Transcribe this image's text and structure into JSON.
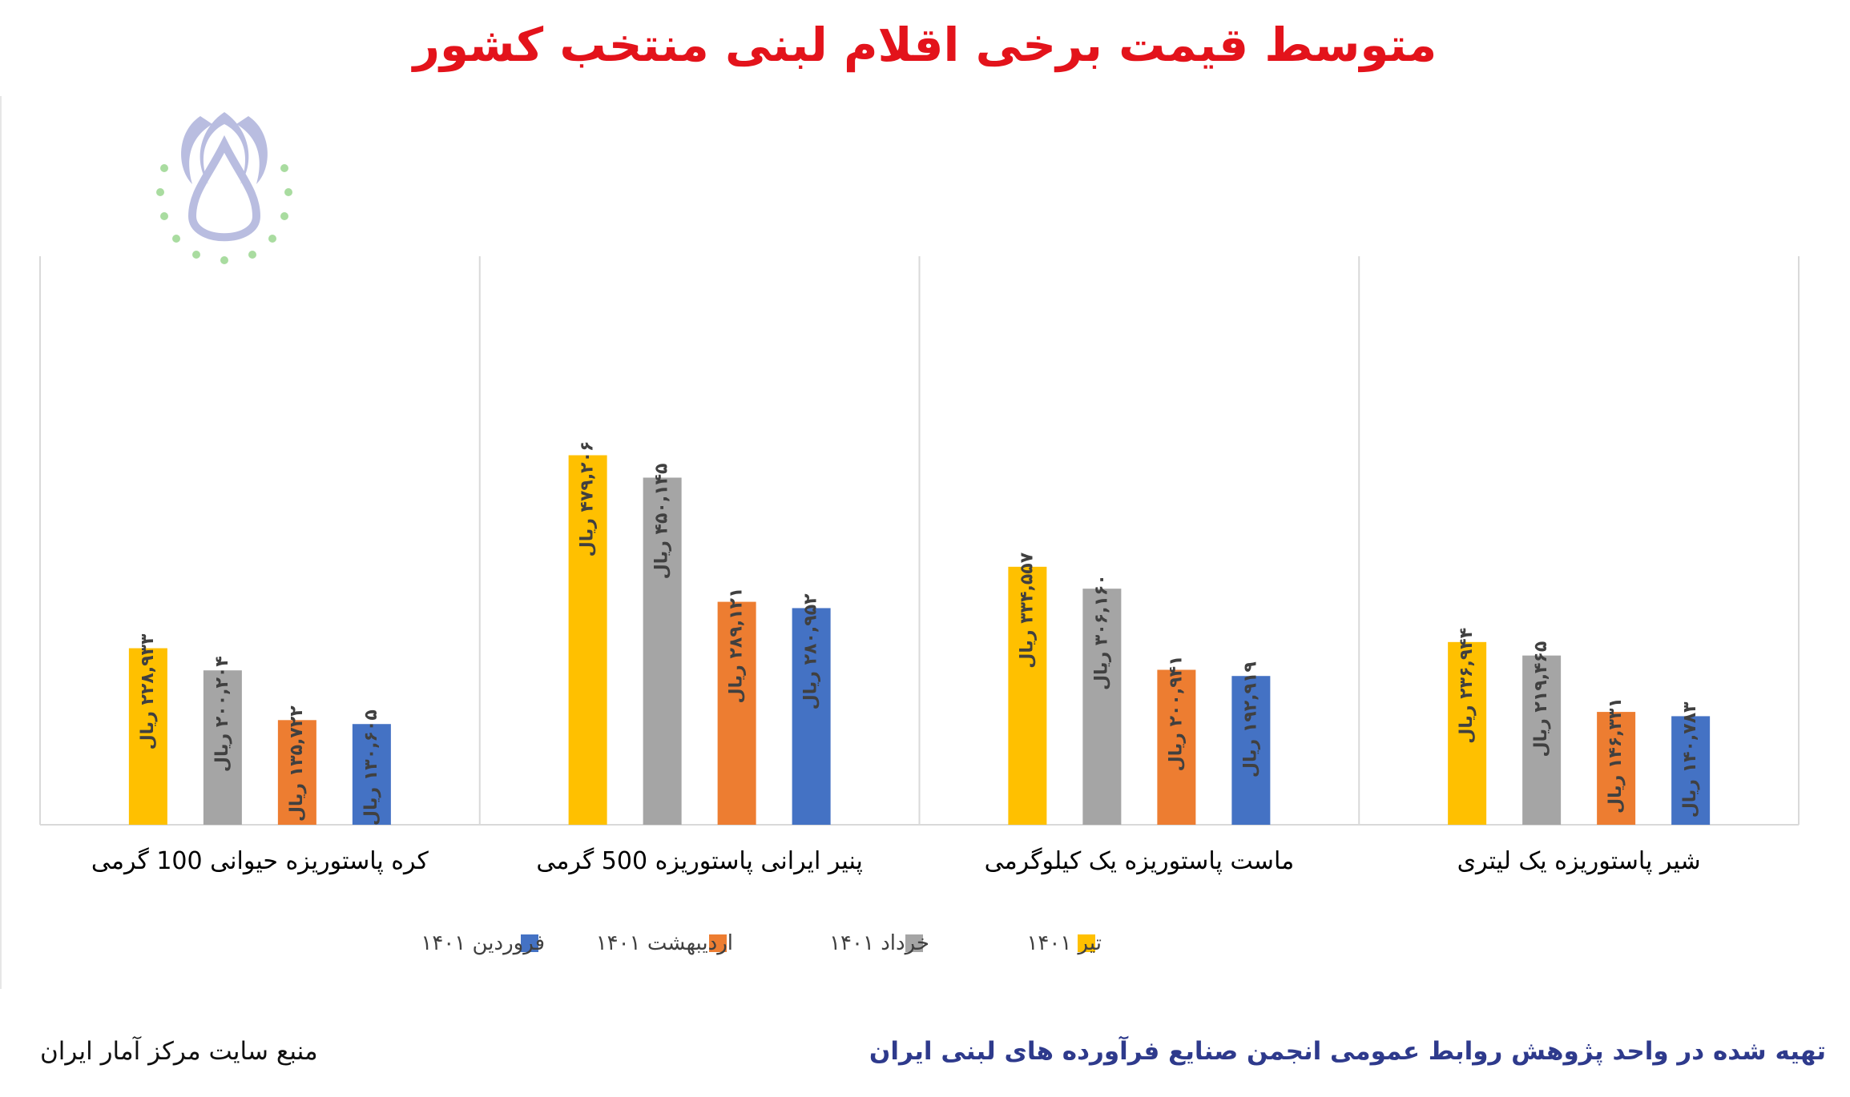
{
  "title": "متوسط قیمت برخی اقلام لبنی منتخب کشور",
  "footer": {
    "prepared_by": "تهیه شده در واحد پژوهش روابط عمومی انجمن صنایع فرآورده های لبنی ایران",
    "source": "منبع سایت مرکز آمار ایران"
  },
  "colors": {
    "tir": "#FFC000",
    "khordad": "#A5A5A5",
    "ordibehesht": "#ED7D31",
    "farvardin": "#4472C4",
    "title": "#e3131b",
    "footer": "#2e3a8c"
  },
  "chart_data": {
    "type": "bar",
    "categories": [
      "کره پاستوریزه حیوانی 100 گرمی",
      "پنیر ایرانی پاستوریزه 500 گرمی",
      "ماست پاستوریزه یک کیلوگرمی",
      "شیر پاستوریزه یک لیتری"
    ],
    "series": [
      {
        "name": "تیر ۱۴۰۱",
        "color": "#FFC000",
        "values": [
          228933,
          479206,
          334557,
          236944
        ],
        "labels": [
          "۲۲۸,۹۳۳ ریال",
          "۴۷۹,۲۰۶ ریال",
          "۳۳۴,۵۵۷ ریال",
          "۲۳۶,۹۴۴ ریال"
        ]
      },
      {
        "name": "خرداد ۱۴۰۱",
        "color": "#A5A5A5",
        "values": [
          200204,
          450145,
          306160,
          219465
        ],
        "labels": [
          "۲۰۰,۲۰۴ ریال",
          "۴۵۰,۱۴۵ ریال",
          "۳۰۶,۱۶۰ ریال",
          "۲۱۹,۴۶۵ ریال"
        ]
      },
      {
        "name": "اردیبهشت ۱۴۰۱",
        "color": "#ED7D31",
        "values": [
          135722,
          289121,
          200941,
          146331
        ],
        "labels": [
          "۱۳۵,۷۲۲ ریال",
          "۲۸۹,۱۲۱ ریال",
          "۲۰۰,۹۴۱ ریال",
          "۱۴۶,۳۳۱ ریال"
        ]
      },
      {
        "name": "فروردین ۱۴۰۱",
        "color": "#4472C4",
        "values": [
          130605,
          280952,
          192919,
          140783
        ],
        "labels": [
          "۱۳۰,۶۰۵ ریال",
          "۲۸۰,۹۵۲ ریال",
          "۱۹۲,۹۱۹ ریال",
          "۱۴۰,۷۸۳ ریال"
        ]
      }
    ],
    "legend": [
      "فروردین ۱۴۰۱",
      "اردیبهشت ۱۴۰۱",
      "خرداد ۱۴۰۱",
      "تیر ۱۴۰۱"
    ],
    "ylim": [
      0,
      600000
    ],
    "grid": false,
    "legend_position": "bottom"
  }
}
